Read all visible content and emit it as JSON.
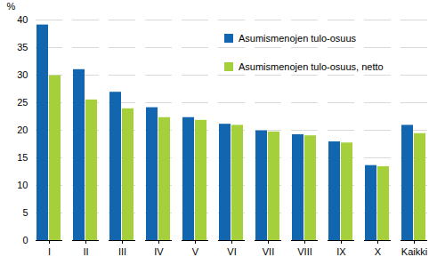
{
  "chart_data": {
    "type": "bar",
    "y_label": "%",
    "categories": [
      "I",
      "II",
      "III",
      "IV",
      "V",
      "VI",
      "VII",
      "VIII",
      "IX",
      "X",
      "Kaikki"
    ],
    "series": [
      {
        "name": "Asumismenojen tulo-osuus",
        "color": "#1266b0",
        "values": [
          39.1,
          31.0,
          26.9,
          24.1,
          22.3,
          21.1,
          19.9,
          19.2,
          17.9,
          13.6,
          20.9
        ]
      },
      {
        "name": "Asumismenojen tulo-osuus, netto",
        "color": "#a6cf3c",
        "values": [
          29.9,
          25.5,
          23.9,
          22.3,
          21.8,
          20.9,
          19.7,
          19.0,
          17.7,
          13.4,
          19.4
        ]
      }
    ],
    "ylim": [
      0,
      40
    ],
    "yticks": [
      0,
      5,
      10,
      15,
      20,
      25,
      30,
      35,
      40
    ],
    "grid": true,
    "legend": "top-right"
  }
}
